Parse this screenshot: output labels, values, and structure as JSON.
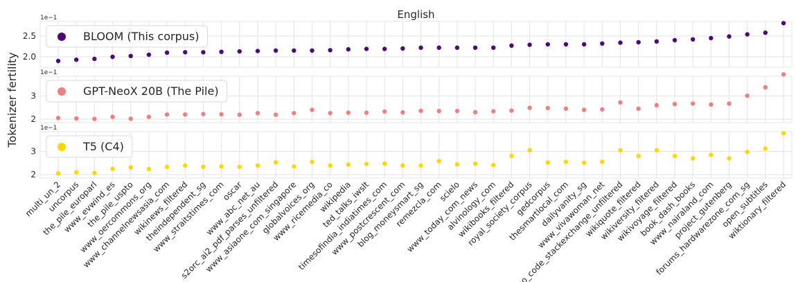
{
  "chart_data": {
    "type": "scatter",
    "title": "English",
    "ylabel": "Tokenizer fertility",
    "grid": true,
    "legend_placement": "top-left",
    "categories": [
      "multi_un_2",
      "uncorpus",
      "the_pile_europarl",
      "www_evwind_es",
      "the_pile_uspto",
      "www_oercommons_org",
      "www_channelnewsasia_com",
      "wikinews_filtered",
      "theindependent_sg",
      "www_straitstimes_com",
      "oscar",
      "www_abc_net_au",
      "s2orc_ai2_pdf_parses_unfiltered",
      "www_asiaone_com_singapore",
      "globalvoices_org",
      "www_ricemedia_co",
      "wikipedia",
      "ted_talks_iwslt",
      "timesofindia_indiatimes_com",
      "www_postcrescent_com",
      "blog_moneysmart_sg",
      "remezcla_com",
      "scielo",
      "www_today_com_news",
      "alvinology_com",
      "wikibooks_filtered",
      "royal_society_corpus",
      "gedcorpus",
      "thesmartlocal_com",
      "dailyvanity_sg",
      "www_vivawoman_net",
      "no_code_stackexchange_unfiltered",
      "wikiquote_filtered",
      "wikiversity_filtered",
      "wikivoyage_filtered",
      "book_dash_books",
      "www_nairaland_com",
      "project_gutenberg",
      "forums_hardwarezone_com_sg",
      "open_subtitles",
      "wiktionary_filtered"
    ],
    "panels": [
      {
        "name": "BLOOM (This corpus)",
        "color": "#4b0a78",
        "exponent_label": "1e−1",
        "ylim": [
          1.75,
          2.85
        ],
        "yticks": [
          2.0,
          2.5
        ],
        "ytick_labels": [
          "2.0",
          "2.5"
        ],
        "values": [
          1.9,
          1.93,
          1.95,
          2.0,
          2.02,
          2.05,
          2.1,
          2.11,
          2.11,
          2.12,
          2.13,
          2.14,
          2.15,
          2.15,
          2.15,
          2.16,
          2.18,
          2.19,
          2.19,
          2.2,
          2.22,
          2.22,
          2.22,
          2.22,
          2.22,
          2.27,
          2.29,
          2.3,
          2.3,
          2.3,
          2.32,
          2.34,
          2.35,
          2.37,
          2.4,
          2.42,
          2.45,
          2.49,
          2.54,
          2.58,
          2.81
        ]
      },
      {
        "name": "GPT-NeoX 20B (The Pile)",
        "color": "#f08080",
        "exponent_label": "1e−1",
        "ylim": [
          1.85,
          3.85
        ],
        "yticks": [
          2,
          3
        ],
        "ytick_labels": [
          "2",
          "3"
        ],
        "values": [
          2.05,
          2.03,
          2.01,
          2.1,
          2.02,
          2.1,
          2.2,
          2.2,
          2.22,
          2.21,
          2.19,
          2.26,
          2.19,
          2.26,
          2.4,
          2.26,
          2.28,
          2.28,
          2.33,
          2.29,
          2.36,
          2.35,
          2.35,
          2.3,
          2.34,
          2.37,
          2.49,
          2.48,
          2.45,
          2.4,
          2.42,
          2.72,
          2.45,
          2.6,
          2.65,
          2.67,
          2.63,
          2.67,
          3.01,
          3.37,
          3.93
        ]
      },
      {
        "name": "T5 (C4)",
        "color": "#ffd700",
        "exponent_label": "1e−1",
        "ylim": [
          1.85,
          3.85
        ],
        "yticks": [
          2,
          3
        ],
        "ytick_labels": [
          "2",
          "3"
        ],
        "values": [
          2.05,
          2.1,
          2.07,
          2.25,
          2.31,
          2.24,
          2.33,
          2.39,
          2.33,
          2.35,
          2.33,
          2.39,
          2.53,
          2.35,
          2.55,
          2.39,
          2.43,
          2.46,
          2.47,
          2.39,
          2.39,
          2.58,
          2.44,
          2.47,
          2.41,
          2.81,
          3.05,
          2.52,
          2.55,
          2.51,
          2.55,
          3.05,
          2.8,
          3.05,
          2.8,
          2.7,
          2.85,
          2.7,
          2.98,
          3.12,
          3.78
        ]
      }
    ]
  }
}
